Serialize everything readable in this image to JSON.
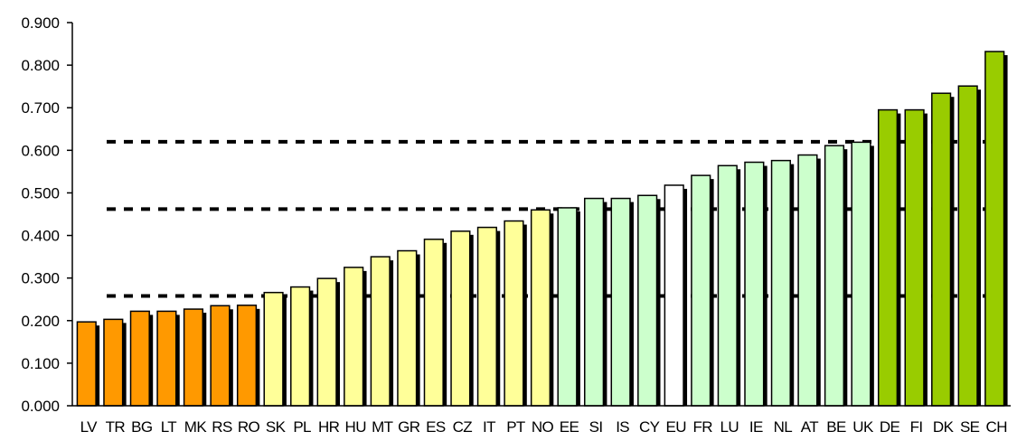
{
  "chart_data": {
    "type": "bar",
    "title": "",
    "xlabel": "",
    "ylabel": "",
    "ylim": [
      0,
      0.9
    ],
    "y_ticks": [
      "0.000",
      "0.100",
      "0.200",
      "0.300",
      "0.400",
      "0.500",
      "0.600",
      "0.700",
      "0.800",
      "0.900"
    ],
    "grid": false,
    "legend": "none",
    "categories": [
      "LV",
      "TR",
      "BG",
      "LT",
      "MK",
      "RS",
      "RO",
      "SK",
      "PL",
      "HR",
      "HU",
      "MT",
      "GR",
      "ES",
      "CZ",
      "IT",
      "PT",
      "NO",
      "EE",
      "SI",
      "IS",
      "CY",
      "EU",
      "FR",
      "LU",
      "IE",
      "NL",
      "AT",
      "BE",
      "UK",
      "DE",
      "FI",
      "DK",
      "SE",
      "CH"
    ],
    "values": [
      0.197,
      0.203,
      0.222,
      0.222,
      0.227,
      0.235,
      0.236,
      0.266,
      0.279,
      0.299,
      0.325,
      0.35,
      0.364,
      0.391,
      0.41,
      0.419,
      0.434,
      0.46,
      0.465,
      0.487,
      0.487,
      0.494,
      0.518,
      0.541,
      0.564,
      0.572,
      0.576,
      0.589,
      0.611,
      0.619,
      0.695,
      0.695,
      0.734,
      0.751,
      0.832
    ],
    "bar_colors": [
      "#FF9900",
      "#FF9900",
      "#FF9900",
      "#FF9900",
      "#FF9900",
      "#FF9900",
      "#FF9900",
      "#FFFF99",
      "#FFFF99",
      "#FFFF99",
      "#FFFF99",
      "#FFFF99",
      "#FFFF99",
      "#FFFF99",
      "#FFFF99",
      "#FFFF99",
      "#FFFF99",
      "#FFFF99",
      "#CCFFCC",
      "#CCFFCC",
      "#CCFFCC",
      "#CCFFCC",
      "#FFFFFF",
      "#CCFFCC",
      "#CCFFCC",
      "#CCFFCC",
      "#CCFFCC",
      "#CCFFCC",
      "#CCFFCC",
      "#CCFFCC",
      "#99CC00",
      "#99CC00",
      "#99CC00",
      "#99CC00",
      "#99CC00"
    ],
    "reference_lines": [
      0.258,
      0.462,
      0.62
    ],
    "reference_line_style": "dashed",
    "colors": {
      "axis": "#000000",
      "bar_outline": "#000000",
      "bar_shadow": "#000000",
      "reference_line": "#000000"
    }
  }
}
